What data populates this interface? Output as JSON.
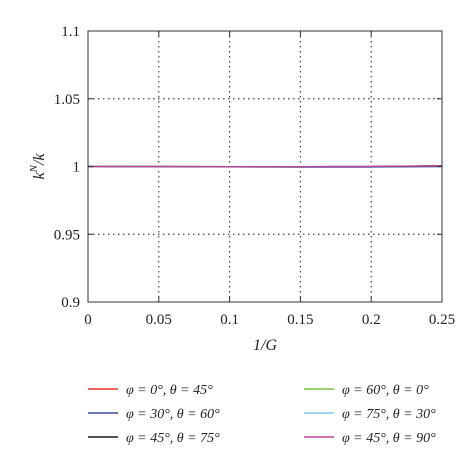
{
  "chart_data": {
    "type": "line",
    "title": "",
    "xlabel": "1/G",
    "ylabel": "k^N/k",
    "xlim": [
      0,
      0.25
    ],
    "ylim": [
      0.9,
      1.1
    ],
    "x_ticks": [
      "0",
      "0.05",
      "0.1",
      "0.15",
      "0.2",
      "0.25"
    ],
    "y_ticks": [
      "0.9",
      "0.95",
      "1",
      "1.05",
      "1.1"
    ],
    "grid": true,
    "legend_position": "bottom",
    "x": [
      0,
      0.05,
      0.1,
      0.15,
      0.2,
      0.25
    ],
    "series": [
      {
        "name": "φ = 0°, θ = 45°",
        "color": "#e8332a",
        "values": [
          1.0,
          1.0,
          0.9998,
          0.9998,
          0.9999,
          1.0005
        ]
      },
      {
        "name": "φ = 60°, θ = 0°",
        "color": "#7ec242",
        "values": [
          1.0,
          1.0,
          0.9999,
          0.9999,
          1.0,
          1.0006
        ]
      },
      {
        "name": "φ = 30°, θ = 60°",
        "color": "#3b4aa8",
        "values": [
          1.0,
          0.9999,
          0.9997,
          0.9996,
          0.9996,
          0.9999
        ]
      },
      {
        "name": "φ = 75°, θ = 30°",
        "color": "#7fcbe6",
        "values": [
          1.0,
          1.0,
          0.9999,
          0.9999,
          0.9999,
          1.0003
        ]
      },
      {
        "name": "φ = 45°, θ = 75°",
        "color": "#1a1a1a",
        "values": [
          1.0,
          1.0,
          0.9999,
          0.9999,
          1.0,
          1.0004
        ]
      },
      {
        "name": "φ = 45°, θ = 90°",
        "color": "#c2409a",
        "values": [
          1.0,
          1.0,
          0.9999,
          0.9999,
          1.0,
          1.0005
        ]
      }
    ]
  }
}
